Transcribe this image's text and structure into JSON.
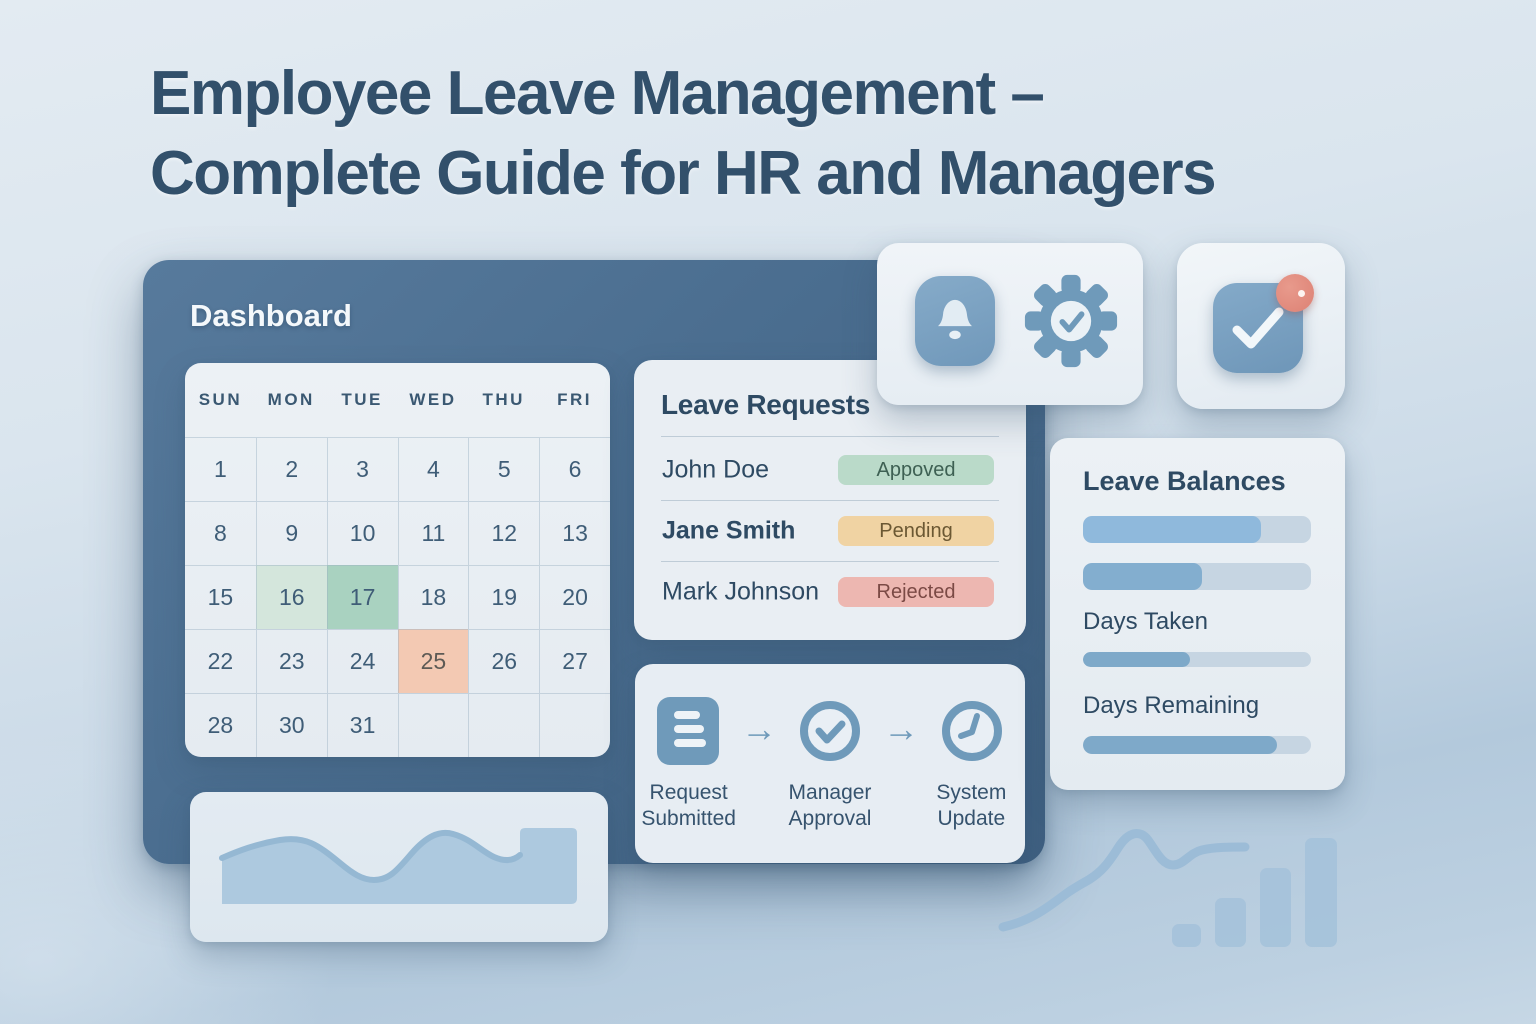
{
  "title": {
    "line1": "Employee Leave Management –",
    "line2": "Complete Guide for HR and Managers"
  },
  "dashboard": {
    "label": "Dashboard"
  },
  "calendar": {
    "day_headers": [
      "SUN",
      "MON",
      "TUE",
      "WED",
      "THU",
      "FRI"
    ],
    "weeks": [
      [
        "1",
        "2",
        "3",
        "4",
        "5",
        "6"
      ],
      [
        "8",
        "9",
        "10",
        "11",
        "12",
        "13"
      ],
      [
        "15",
        "16",
        "17",
        "18",
        "19",
        "20"
      ],
      [
        "22",
        "23",
        "24",
        "25",
        "26",
        "27"
      ],
      [
        "28",
        "30",
        "31",
        "",
        "",
        ""
      ]
    ],
    "highlights": {
      "16": "green-light",
      "17": "green",
      "25": "salmon"
    }
  },
  "leave_requests": {
    "title": "Leave Requests",
    "rows": [
      {
        "name": "John Doe",
        "status": "Appoved",
        "tone": "green",
        "bold": false
      },
      {
        "name": "Jane Smith",
        "status": "Pending",
        "tone": "orange",
        "bold": true
      },
      {
        "name": "Mark Johnson",
        "status": "Rejected",
        "tone": "red",
        "bold": false
      }
    ]
  },
  "workflow": {
    "steps": [
      {
        "icon": "document-icon",
        "label_line1": "Request",
        "label_line2": "Submitted"
      },
      {
        "icon": "check-circle-icon",
        "label_line1": "Manager",
        "label_line2": "Approval"
      },
      {
        "icon": "clock-icon",
        "label_line1": "System",
        "label_line2": "Update"
      }
    ]
  },
  "notifications": {
    "icons": [
      "bell-icon",
      "gear-check-icon"
    ]
  },
  "approvals_widget": {
    "icon": "check-square-icon",
    "badge": "notification-dot"
  },
  "leave_balances": {
    "title": "Leave Balances",
    "bars": [
      {
        "id": "balance-total",
        "percent": 78
      },
      {
        "id": "balance-used",
        "percent": 52
      },
      {
        "id": "days-taken",
        "percent": 47
      },
      {
        "id": "days-remaining",
        "percent": 85
      }
    ],
    "days_taken_label": "Days Taken",
    "days_remaining_label": "Days Remaining"
  },
  "colors": {
    "panel": "#46688a",
    "accent_blue": "#6f9aba",
    "approved_badge": "#badac9",
    "pending_badge": "#f0d3a3",
    "rejected_badge": "#edb7b1",
    "calendar_green": "#a9d2c0",
    "calendar_green_light": "#d4e6dc",
    "calendar_salmon": "#f3c9b3",
    "alert_red": "#dd8174"
  }
}
